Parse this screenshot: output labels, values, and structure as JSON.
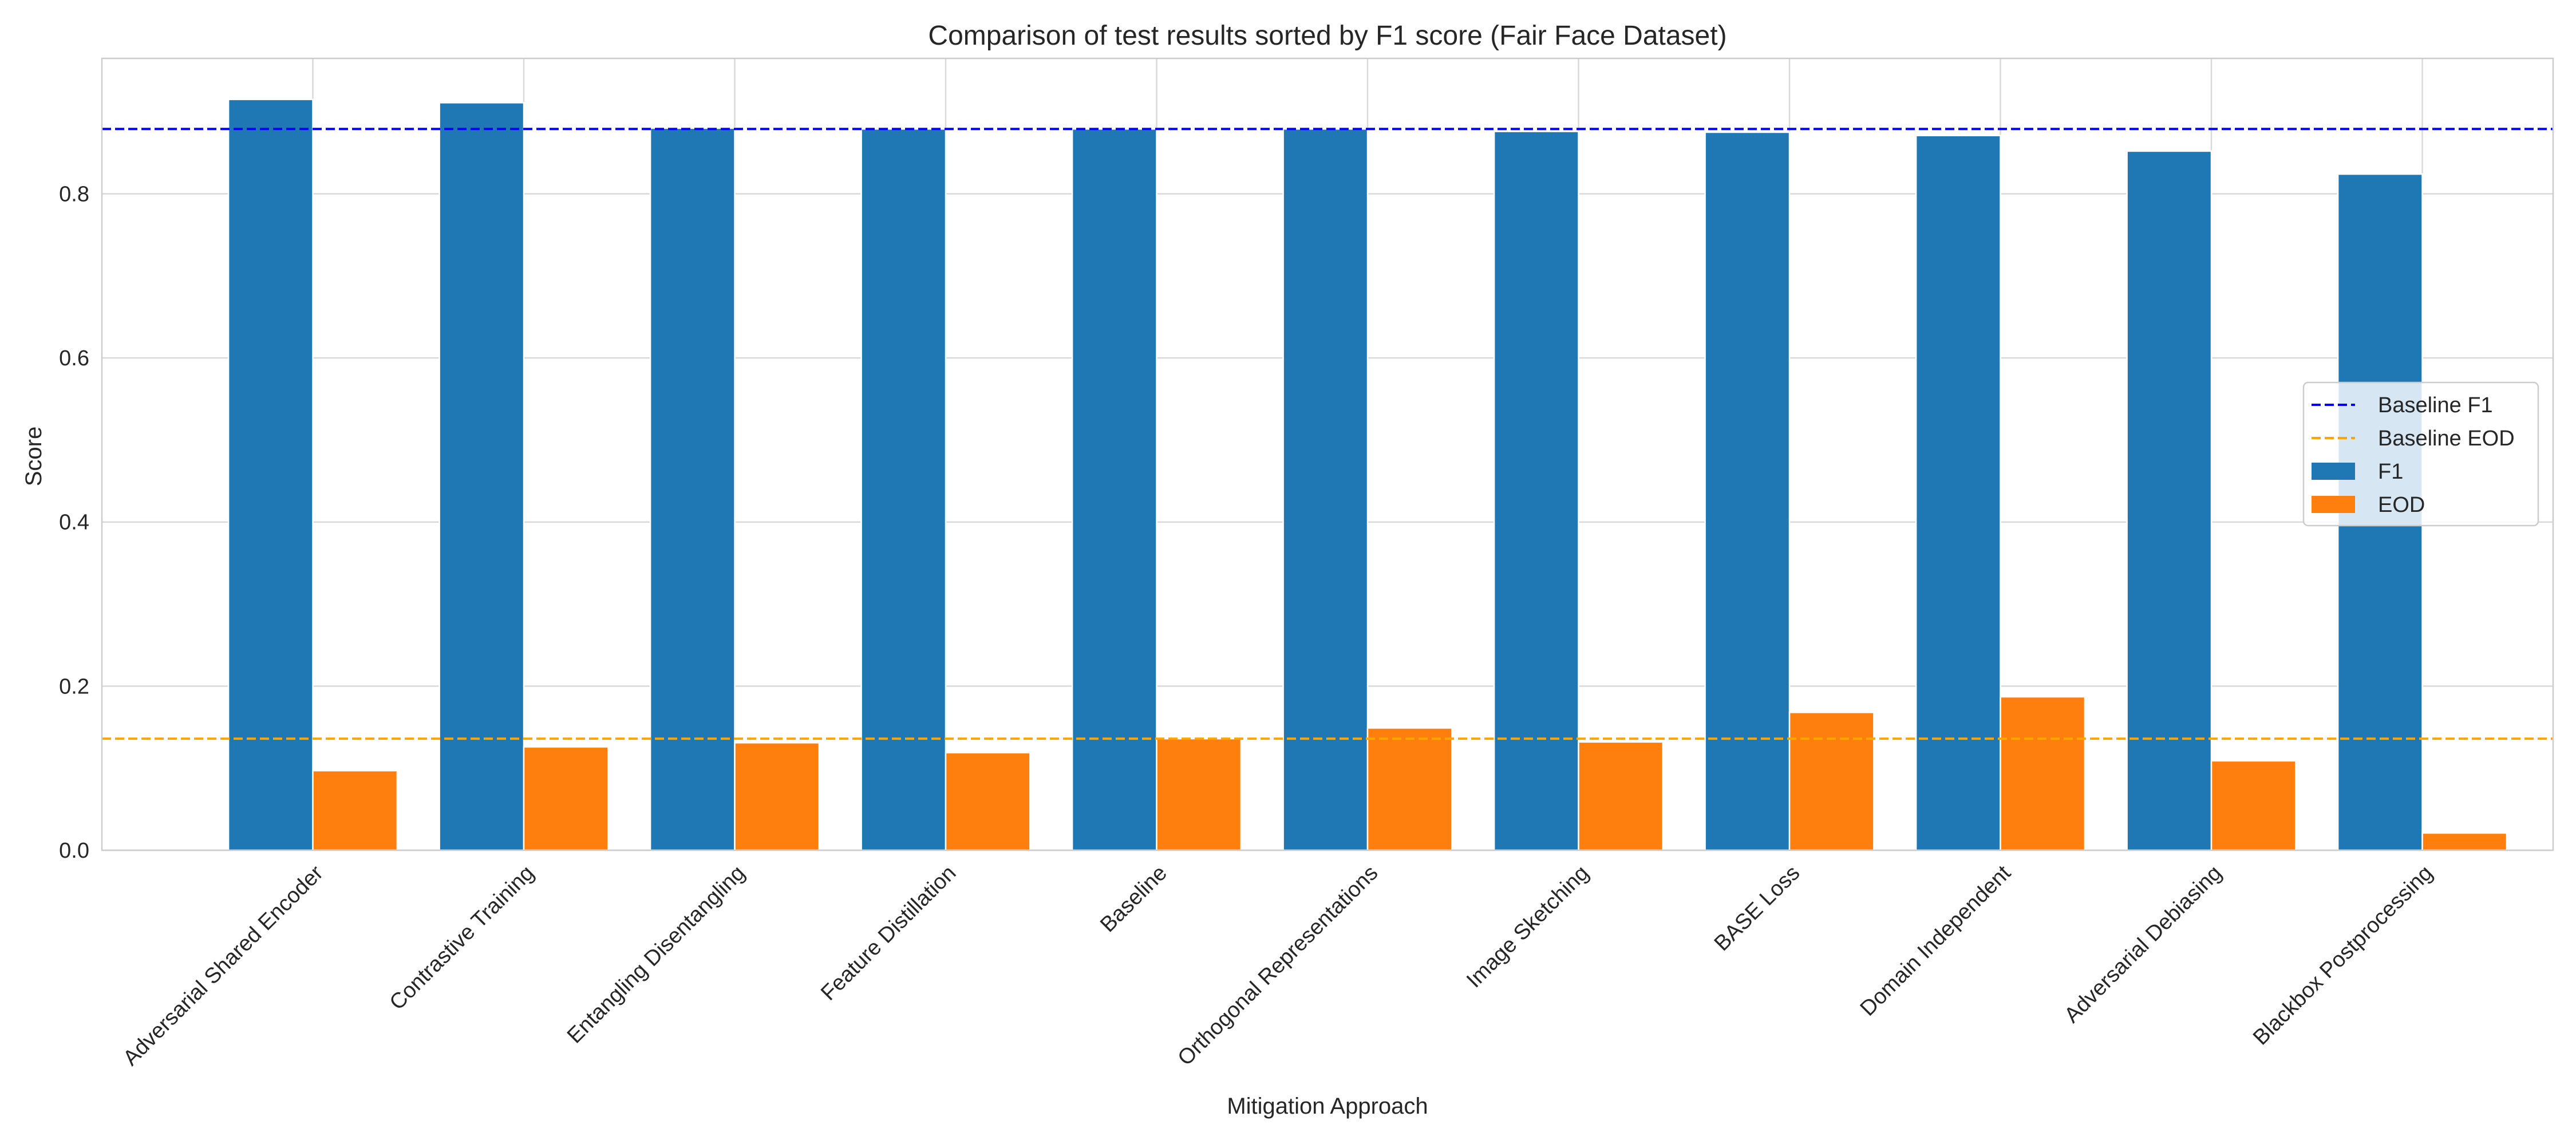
{
  "chart_data": {
    "type": "bar",
    "title": "Comparison of test results sorted by F1 score (Fair Face Dataset)",
    "xlabel": "Mitigation Approach",
    "ylabel": "Score",
    "ylim": [
      0,
      0.965
    ],
    "yticks": [
      "0.0",
      "0.2",
      "0.4",
      "0.6",
      "0.8"
    ],
    "ytick_values": [
      0,
      0.2,
      0.4,
      0.6,
      0.8
    ],
    "grid": true,
    "legend_position": "center-right",
    "categories": [
      "Adversarial Shared Encoder",
      "Contrastive Training",
      "Entangling Disentangling",
      "Feature Distillation",
      "Baseline",
      "Orthogonal Representations",
      "Image Sketching",
      "BASE Loss",
      "Domain Independent",
      "Adversarial Debiasing",
      "Blackbox Postprocessing"
    ],
    "series": [
      {
        "name": "F1",
        "color": "#1f77b4",
        "values": [
          0.915,
          0.911,
          0.88,
          0.879,
          0.879,
          0.879,
          0.876,
          0.875,
          0.871,
          0.852,
          0.824
        ]
      },
      {
        "name": "EOD",
        "color": "#ff7f0e",
        "values": [
          0.097,
          0.126,
          0.131,
          0.119,
          0.136,
          0.149,
          0.132,
          0.168,
          0.187,
          0.109,
          0.021
        ]
      }
    ],
    "reference_lines": [
      {
        "name": "Baseline F1",
        "value": 0.879,
        "color": "#0000ff",
        "style": "dashed"
      },
      {
        "name": "Baseline EOD",
        "value": 0.136,
        "color": "#ffa500",
        "style": "dashed"
      }
    ],
    "legend_entries": [
      {
        "label": "Baseline F1",
        "kind": "line",
        "color": "#0000ff"
      },
      {
        "label": "Baseline EOD",
        "kind": "line",
        "color": "#ffa500"
      },
      {
        "label": "F1",
        "kind": "patch",
        "color": "#1f77b4"
      },
      {
        "label": "EOD",
        "kind": "patch",
        "color": "#ff7f0e"
      }
    ]
  }
}
